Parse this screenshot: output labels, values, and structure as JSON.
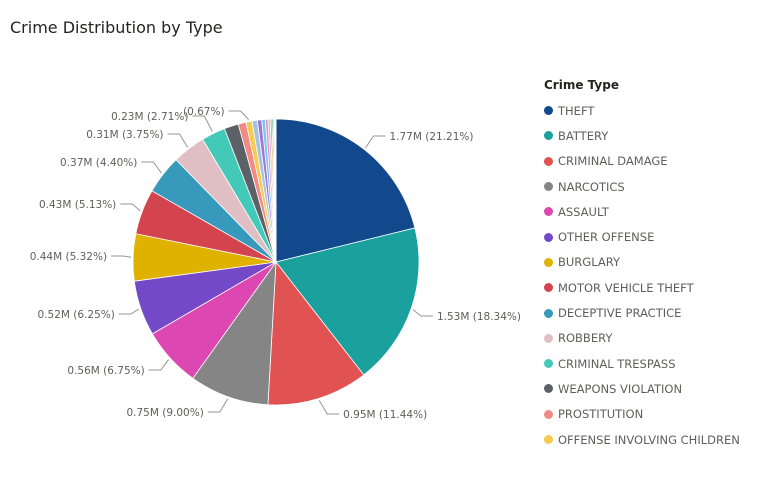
{
  "chart_data": {
    "type": "pie",
    "title": "Crime Distribution by Type",
    "legend_title": "Crime Type",
    "legend_position": "right",
    "slices": [
      {
        "name": "THEFT",
        "value": 1.77,
        "percent": 21.21,
        "label": "1.77M (21.21%)",
        "color": "#12498c"
      },
      {
        "name": "BATTERY",
        "value": 1.53,
        "percent": 18.34,
        "label": "1.53M (18.34%)",
        "color": "#1aa19d"
      },
      {
        "name": "CRIMINAL DAMAGE",
        "value": 0.95,
        "percent": 11.44,
        "label": "0.95M (11.44%)",
        "color": "#e15353"
      },
      {
        "name": "NARCOTICS",
        "value": 0.75,
        "percent": 9.0,
        "label": "0.75M (9.00%)",
        "color": "#858585"
      },
      {
        "name": "ASSAULT",
        "value": 0.56,
        "percent": 6.75,
        "label": "0.56M (6.75%)",
        "color": "#dd47b1"
      },
      {
        "name": "OTHER OFFENSE",
        "value": 0.52,
        "percent": 6.25,
        "label": "0.52M (6.25%)",
        "color": "#7349c8"
      },
      {
        "name": "BURGLARY",
        "value": 0.44,
        "percent": 5.32,
        "label": "0.44M (5.32%)",
        "color": "#dfb200"
      },
      {
        "name": "MOTOR VEHICLE THEFT",
        "value": 0.43,
        "percent": 5.13,
        "label": "0.43M (5.13%)",
        "color": "#d4444f"
      },
      {
        "name": "DECEPTIVE PRACTICE",
        "value": 0.37,
        "percent": 4.4,
        "label": "0.37M (4.40%)",
        "color": "#3799bc"
      },
      {
        "name": "ROBBERY",
        "value": 0.31,
        "percent": 3.75,
        "label": "0.31M (3.75%)",
        "color": "#dfbfc4"
      },
      {
        "name": "CRIMINAL TRESPASS",
        "value": 0.23,
        "percent": 2.71,
        "label": "0.23M (2.71%)",
        "color": "#43c9b7"
      },
      {
        "name": "WEAPONS VIOLATION",
        "value": 0.14,
        "percent": 1.62,
        "label": "",
        "color": "#5b6166"
      },
      {
        "name": "PROSTITUTION",
        "value": 0.07,
        "percent": 0.89,
        "label": "",
        "color": "#f38a83"
      },
      {
        "name": "OFFENSE INVOLVING CHILDREN",
        "value": 0.06,
        "percent": 0.67,
        "label": "(0.67%)",
        "color": "#f3cb4e"
      },
      {
        "name": "",
        "value": 0.05,
        "percent": 0.6,
        "label": "",
        "color": "#a7c1e0"
      },
      {
        "name": "",
        "value": 0.04,
        "percent": 0.5,
        "label": "",
        "color": "#9a7ad6"
      },
      {
        "name": "",
        "value": 0.03,
        "percent": 0.4,
        "label": "",
        "color": "#78c8ea"
      },
      {
        "name": "",
        "value": 0.02,
        "percent": 0.3,
        "label": "",
        "color": "#e88bc8"
      },
      {
        "name": "",
        "value": 0.02,
        "percent": 0.25,
        "label": "",
        "color": "#bfbfbf"
      },
      {
        "name": "",
        "value": 0.01,
        "percent": 0.2,
        "label": "",
        "color": "#c4a94c"
      },
      {
        "name": "",
        "value": 0.01,
        "percent": 0.15,
        "label": "",
        "color": "#38a67b"
      },
      {
        "name": "",
        "value": 0.01,
        "percent": 0.12,
        "label": "",
        "color": "#d16f6f"
      },
      {
        "name": "",
        "value": 0.01,
        "percent": 0.1,
        "label": "",
        "color": "#6c8ebf"
      },
      {
        "name": "",
        "value": 0.01,
        "percent": 0.08,
        "label": "",
        "color": "#e6a157"
      }
    ]
  }
}
